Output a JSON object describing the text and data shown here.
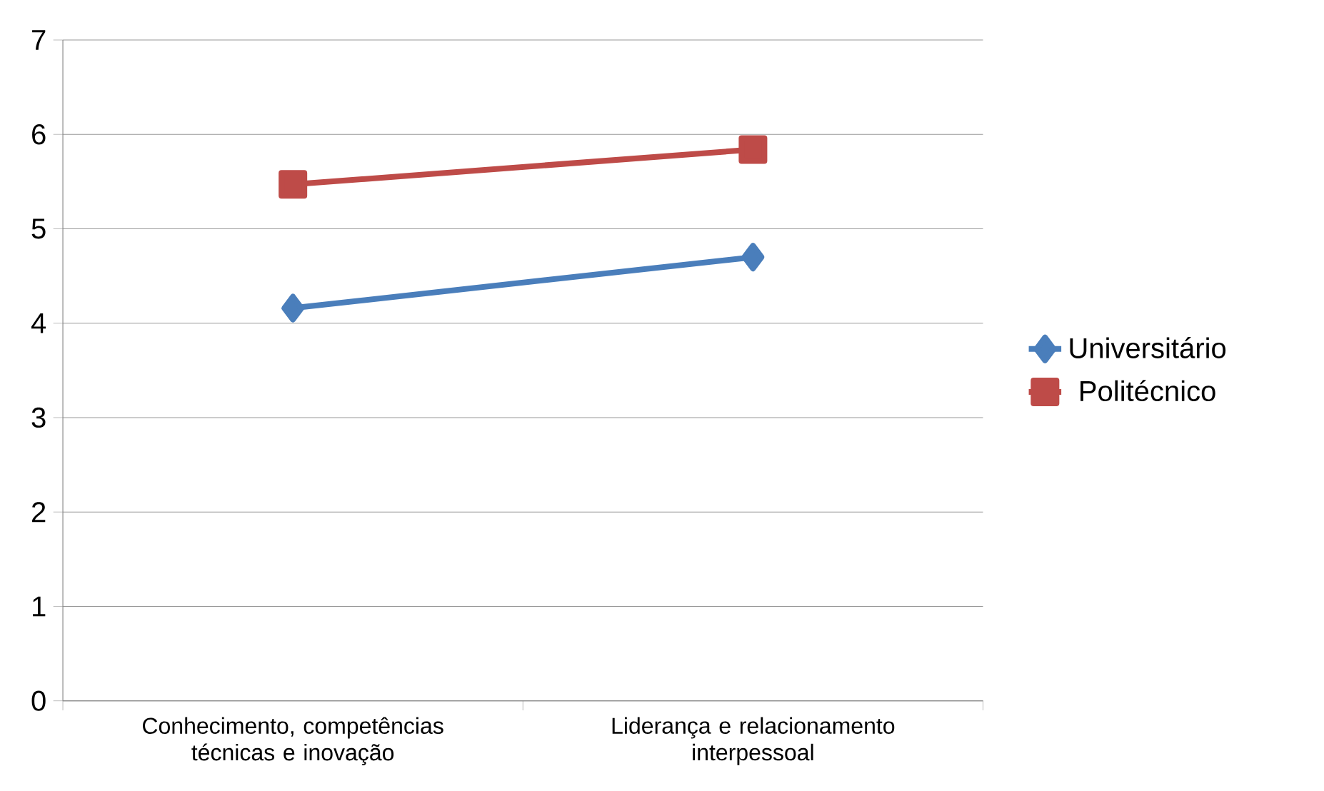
{
  "chart_data": {
    "type": "line",
    "categories": [
      "Conhecimento, competências técnicas e inovação",
      "Liderança e relacionamento interpessoal"
    ],
    "series": [
      {
        "name": "Universitário",
        "color": "#4a7ebb",
        "values": [
          4.16,
          4.7
        ],
        "marker": "diamond"
      },
      {
        "name": "Politécnico",
        "color": "#be4b48",
        "values": [
          5.47,
          5.84
        ],
        "marker": "square"
      }
    ],
    "ylim": [
      0,
      7
    ],
    "yticks": [
      0,
      1,
      2,
      3,
      4,
      5,
      6,
      7
    ],
    "grid": "y",
    "legend": "right",
    "line_style": "solid"
  }
}
